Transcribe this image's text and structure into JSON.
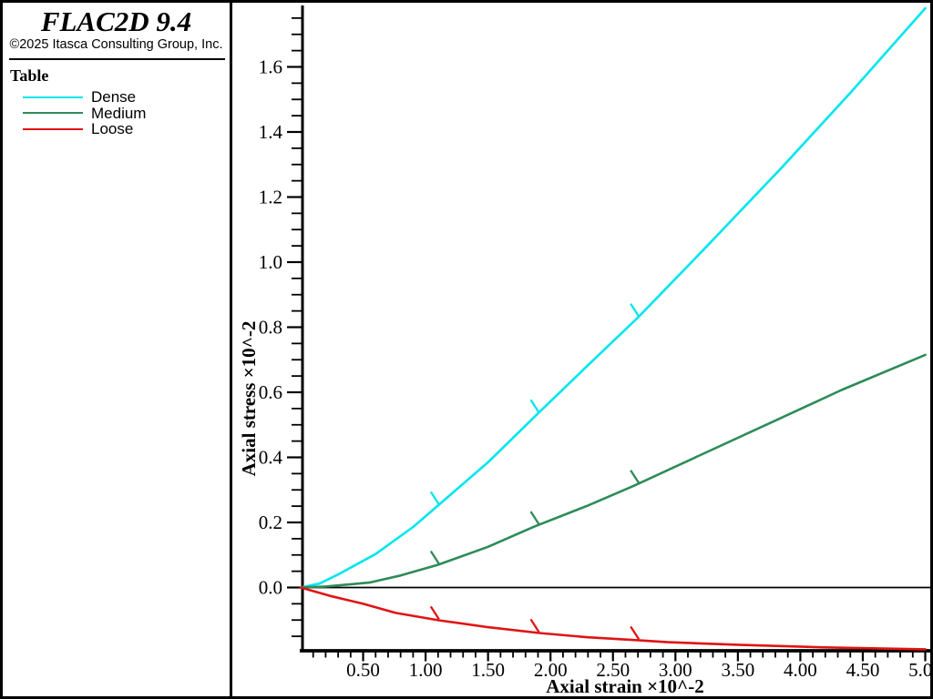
{
  "panel": {
    "title": "FLAC2D 9.4",
    "copyright": "©2025 Itasca Consulting Group, Inc.",
    "legend_title": "Table",
    "legend": [
      {
        "label": "Dense",
        "color": "#00E5EE"
      },
      {
        "label": "Medium",
        "color": "#2E8B57"
      },
      {
        "label": "Loose",
        "color": "#E01414"
      }
    ]
  },
  "chart_data": {
    "type": "line",
    "title": "",
    "xlabel": "Axial strain ×10^-2",
    "ylabel": "Axial stress ×10^-2",
    "xlim": [
      0,
      5.05
    ],
    "ylim": [
      -0.19,
      1.79
    ],
    "grid": false,
    "legend_position": "left-panel",
    "zero_line": true,
    "axis_color": "#000000",
    "x_ticks": {
      "values": [
        0.5,
        1.0,
        1.5,
        2.0,
        2.5,
        3.0,
        3.5,
        4.0,
        4.5,
        5.0
      ],
      "labels": [
        "0.50",
        "1.00",
        "1.50",
        "2.00",
        "2.50",
        "3.00",
        "3.50",
        "4.00",
        "4.50",
        "5.00"
      ],
      "minor_step": 0.1
    },
    "y_ticks": {
      "values": [
        0.0,
        0.2,
        0.4,
        0.6,
        0.8,
        1.0,
        1.2,
        1.4,
        1.6
      ],
      "labels": [
        "0.0",
        "0.2",
        "0.4",
        "0.6",
        "0.8",
        "1.0",
        "1.2",
        "1.4",
        "1.6"
      ],
      "minor_step": 0.05,
      "minor_min": -0.15,
      "minor_max": 1.75
    },
    "marker_x": [
      1.1,
      1.9,
      2.7
    ],
    "series": [
      {
        "name": "Dense",
        "color": "#00E5EE",
        "points": [
          [
            0,
            0
          ],
          [
            0.15,
            0.012
          ],
          [
            0.3,
            0.04
          ],
          [
            0.6,
            0.103
          ],
          [
            0.9,
            0.186
          ],
          [
            1.1,
            0.252
          ],
          [
            1.5,
            0.385
          ],
          [
            1.9,
            0.535
          ],
          [
            2.3,
            0.683
          ],
          [
            2.7,
            0.83
          ],
          [
            3.23,
            1.04
          ],
          [
            3.85,
            1.29
          ],
          [
            4.4,
            1.52
          ],
          [
            5.0,
            1.78
          ]
        ]
      },
      {
        "name": "Medium",
        "color": "#2E8B57",
        "points": [
          [
            0,
            0
          ],
          [
            0.2,
            0.003
          ],
          [
            0.55,
            0.015
          ],
          [
            0.8,
            0.037
          ],
          [
            1.1,
            0.07
          ],
          [
            1.5,
            0.125
          ],
          [
            1.87,
            0.187
          ],
          [
            2.3,
            0.252
          ],
          [
            2.67,
            0.313
          ],
          [
            3.2,
            0.407
          ],
          [
            3.8,
            0.513
          ],
          [
            4.33,
            0.607
          ],
          [
            5.0,
            0.715
          ]
        ]
      },
      {
        "name": "Loose",
        "color": "#E01414",
        "points": [
          [
            0,
            0
          ],
          [
            0.25,
            -0.027
          ],
          [
            0.5,
            -0.05
          ],
          [
            0.76,
            -0.078
          ],
          [
            1.11,
            -0.101
          ],
          [
            1.5,
            -0.122
          ],
          [
            1.91,
            -0.14
          ],
          [
            2.3,
            -0.153
          ],
          [
            2.7,
            -0.162
          ],
          [
            2.94,
            -0.168
          ],
          [
            3.5,
            -0.176
          ],
          [
            4.2,
            -0.184
          ],
          [
            5.0,
            -0.19
          ]
        ]
      }
    ]
  }
}
